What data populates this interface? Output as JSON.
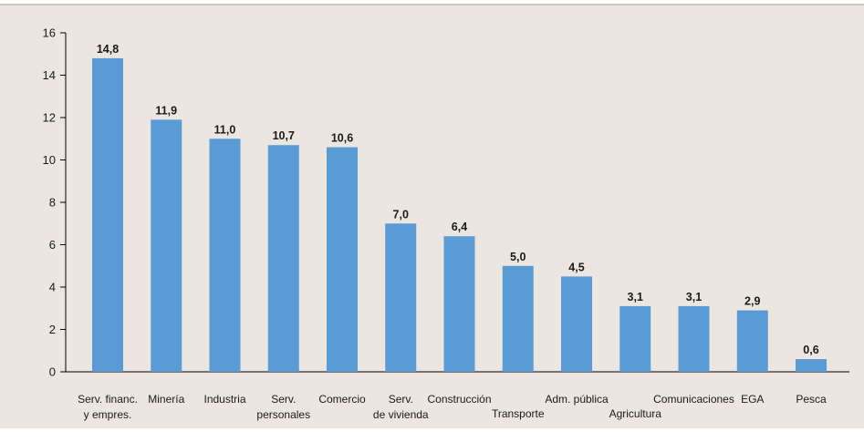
{
  "colors": {
    "bar": "#5b9bd5",
    "panel": "#ece6e1",
    "rule": "#cfc7bc"
  },
  "chart_data": {
    "type": "bar",
    "categories": [
      [
        "Serv. financ.",
        "y empres."
      ],
      [
        "Minería"
      ],
      [
        "Industria"
      ],
      [
        "Serv.",
        "personales"
      ],
      [
        "Comercio"
      ],
      [
        "Serv.",
        "de vivienda"
      ],
      [
        "Construcción"
      ],
      [
        "Transporte"
      ],
      [
        "Adm. pública"
      ],
      [
        "Agricultura"
      ],
      [
        "Comunicaciones"
      ],
      [
        "EGA"
      ],
      [
        "Pesca"
      ]
    ],
    "category_row": [
      0,
      0,
      0,
      0,
      0,
      0,
      0,
      1,
      0,
      1,
      0,
      0,
      0
    ],
    "values": [
      14.8,
      11.9,
      11.0,
      10.7,
      10.6,
      7.0,
      6.4,
      5.0,
      4.5,
      3.1,
      3.1,
      2.9,
      0.6
    ],
    "value_labels": [
      "14,8",
      "11,9",
      "11,0",
      "10,7",
      "10,6",
      "7,0",
      "6,4",
      "5,0",
      "4,5",
      "3,1",
      "3,1",
      "2,9",
      "0,6"
    ],
    "ylim": [
      0,
      16
    ],
    "yticks": [
      0,
      2,
      4,
      6,
      8,
      10,
      12,
      14,
      16
    ],
    "title": "",
    "xlabel": "",
    "ylabel": "",
    "grid": false,
    "legend": "none"
  }
}
